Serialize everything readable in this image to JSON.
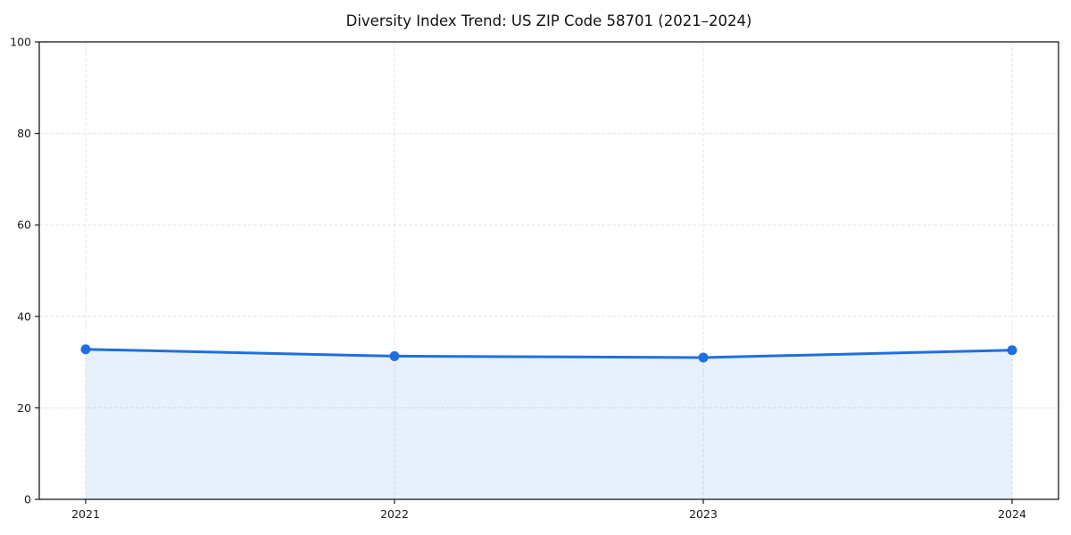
{
  "chart_data": {
    "type": "area",
    "title": "Diversity Index Trend: US ZIP Code 58701 (2021–2024)",
    "categories": [
      "2021",
      "2022",
      "2023",
      "2024"
    ],
    "x": [
      2021,
      2022,
      2023,
      2024
    ],
    "series": [
      {
        "name": "Diversity Index",
        "values": [
          32.8,
          31.3,
          31.0,
          32.6
        ]
      }
    ],
    "xlabel": "",
    "ylabel": "",
    "ylim": [
      0,
      100
    ],
    "yticks": [
      0,
      20,
      40,
      60,
      80,
      100
    ],
    "grid": true,
    "grid_style": "dashed",
    "legend_position": "none",
    "colors": {
      "line": "#1f6fe0",
      "marker": "#1f6fe0",
      "area_fill": "#1f6fe0",
      "area_fill_opacity": 0.1,
      "grid": "#e4e4e4",
      "spine": "#1a1a1a",
      "tick_text": "#1a1a1a",
      "background": "#ffffff"
    }
  }
}
